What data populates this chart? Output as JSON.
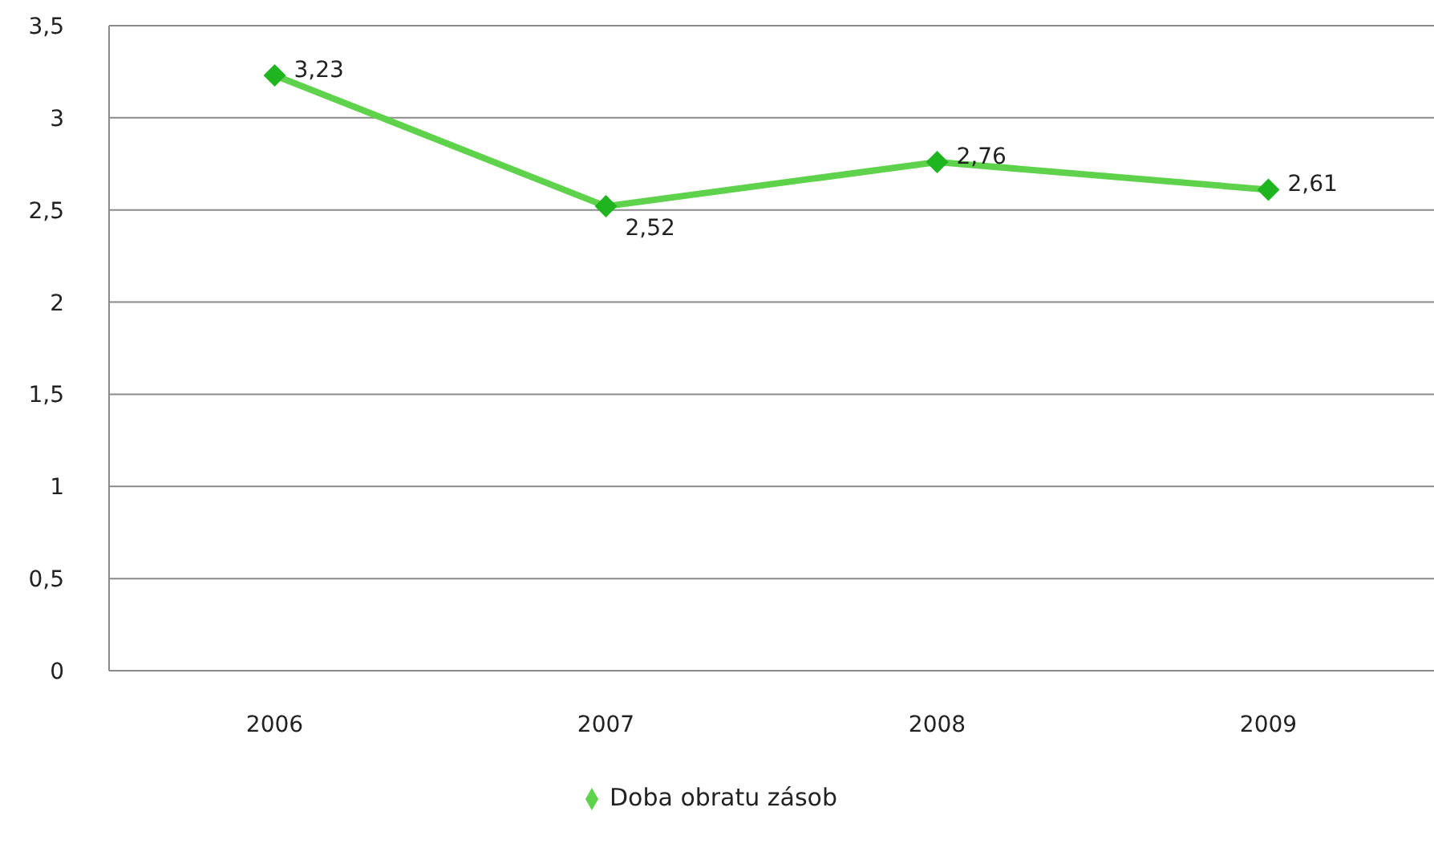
{
  "chart_data": {
    "type": "line",
    "categories": [
      "2006",
      "2007",
      "2008",
      "2009"
    ],
    "series": [
      {
        "name": "Doba obratu zásob",
        "color": "#5fd24c",
        "values": [
          3.23,
          2.52,
          2.76,
          2.61
        ],
        "value_labels": [
          "3,23",
          "2,52",
          "2,76",
          "2,61"
        ]
      }
    ],
    "ylim": [
      0,
      3.5
    ],
    "yticks": [
      0,
      {
        "value": 0.5,
        "label": "0,5"
      },
      1,
      {
        "value": 1.5,
        "label": "1,5"
      },
      2,
      {
        "value": 2.5,
        "label": "2,5"
      },
      3,
      {
        "value": 3.5,
        "label": "3,5"
      }
    ],
    "grid": "y",
    "legend": "bottom",
    "marker": "diamond",
    "line_style": "solid"
  }
}
